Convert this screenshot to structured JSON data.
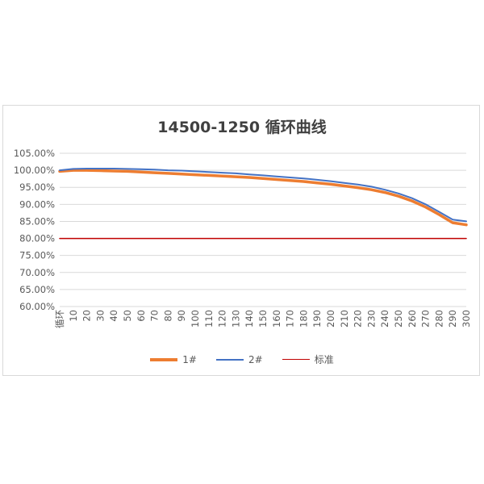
{
  "chart_data": {
    "type": "line",
    "title": "14500-1250 循环曲线",
    "x_first_label": "循环",
    "x": [
      0,
      10,
      20,
      30,
      40,
      50,
      60,
      70,
      80,
      90,
      100,
      110,
      120,
      130,
      140,
      150,
      160,
      170,
      180,
      190,
      200,
      210,
      220,
      230,
      240,
      250,
      260,
      270,
      280,
      290,
      300
    ],
    "y_tick_labels": [
      "105.00%",
      "100.00%",
      "95.00%",
      "90.00%",
      "85.00%",
      "80.00%",
      "75.00%",
      "70.00%",
      "65.00%",
      "60.00%"
    ],
    "ylim": [
      60,
      105
    ],
    "grid": true,
    "legend_position": "bottom",
    "series": [
      {
        "name": "1#",
        "color": "#ED7D31",
        "values": [
          99.7,
          100.0,
          100.0,
          99.9,
          99.8,
          99.7,
          99.5,
          99.3,
          99.1,
          98.9,
          98.7,
          98.5,
          98.3,
          98.1,
          97.9,
          97.6,
          97.3,
          97.0,
          96.7,
          96.3,
          95.9,
          95.4,
          94.9,
          94.3,
          93.5,
          92.4,
          91.0,
          89.2,
          87.0,
          84.6,
          84.0
        ]
      },
      {
        "name": "2#",
        "color": "#4472C4",
        "values": [
          100.0,
          100.4,
          100.5,
          100.5,
          100.5,
          100.4,
          100.3,
          100.2,
          100.0,
          99.9,
          99.7,
          99.5,
          99.3,
          99.1,
          98.8,
          98.5,
          98.2,
          97.9,
          97.6,
          97.2,
          96.8,
          96.3,
          95.8,
          95.2,
          94.3,
          93.2,
          91.8,
          90.0,
          87.8,
          85.5,
          85.0
        ]
      },
      {
        "name": "标准",
        "color": "#C00000",
        "values": [
          80,
          80,
          80,
          80,
          80,
          80,
          80,
          80,
          80,
          80,
          80,
          80,
          80,
          80,
          80,
          80,
          80,
          80,
          80,
          80,
          80,
          80,
          80,
          80,
          80,
          80,
          80,
          80,
          80,
          80,
          80
        ]
      }
    ]
  }
}
